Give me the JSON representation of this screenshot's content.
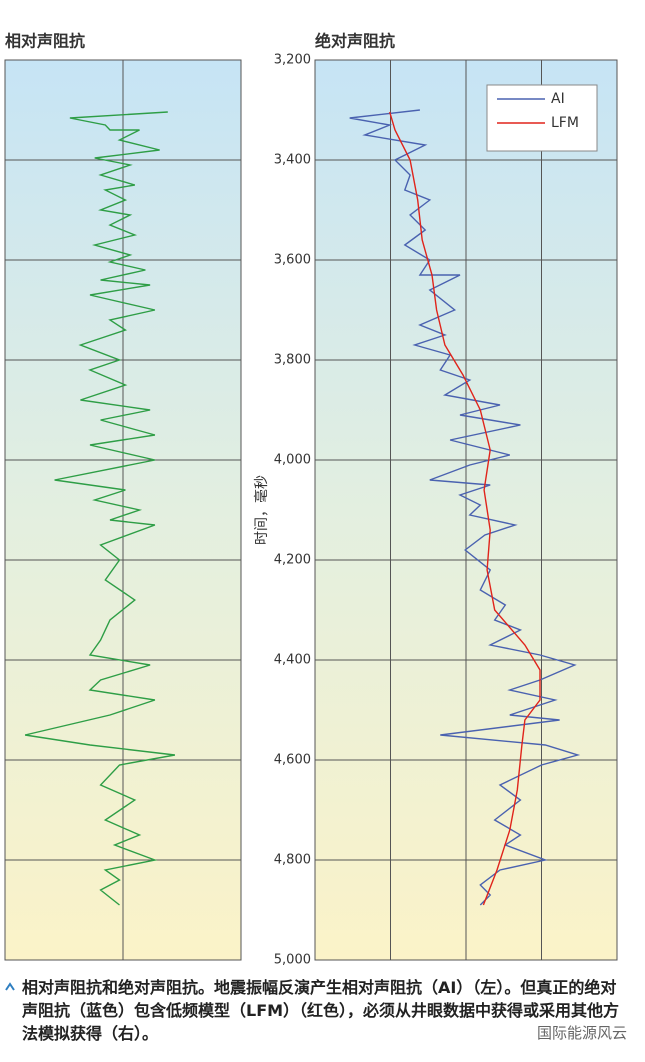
{
  "chart_data": [
    {
      "type": "line",
      "title": "相对声阻抗",
      "xlim": [
        -1,
        1
      ],
      "xgrid": [
        0
      ],
      "ylim": [
        3200,
        5000
      ],
      "yreverse": true,
      "ygrid": [
        3400,
        3600,
        3800,
        4000,
        4200,
        4400,
        4600,
        4800
      ],
      "series": [
        {
          "color": "#2e9e46",
          "values": [
            0.38,
            -0.45,
            -0.15,
            -0.11,
            0.14,
            -0.03,
            0.31,
            -0.24,
            0.06,
            -0.19,
            0.1,
            -0.15,
            0.02,
            -0.19,
            0.06,
            -0.11,
            0.1,
            -0.24,
            0.06,
            -0.11,
            0.19,
            -0.19,
            0.23,
            -0.28,
            0.27,
            -0.11,
            0.02,
            -0.36,
            -0.03,
            -0.28,
            0.02,
            -0.36,
            0.23,
            -0.19,
            0.27,
            -0.28,
            0.27,
            -0.58,
            0.02,
            -0.24,
            0.14,
            -0.11,
            0.27,
            -0.19,
            -0.03,
            -0.15,
            0.1,
            -0.11,
            -0.19,
            -0.28,
            0.23,
            -0.19,
            -0.28,
            0.27,
            -0.11,
            -0.83,
            -0.28,
            0.44,
            -0.03,
            -0.19,
            0.1,
            -0.15,
            0.14,
            -0.07,
            0.27,
            -0.15,
            -0.03,
            -0.19,
            -0.03
          ],
          "y": [
            3304,
            3316,
            3330,
            3340,
            3340,
            3360,
            3380,
            3396,
            3410,
            3430,
            3450,
            3460,
            3480,
            3500,
            3510,
            3530,
            3550,
            3570,
            3590,
            3604,
            3620,
            3640,
            3650,
            3670,
            3700,
            3720,
            3740,
            3770,
            3800,
            3820,
            3850,
            3880,
            3900,
            3920,
            3950,
            3970,
            4000,
            4040,
            4060,
            4080,
            4100,
            4120,
            4130,
            4170,
            4200,
            4240,
            4280,
            4320,
            4360,
            4390,
            4410,
            4440,
            4460,
            4480,
            4510,
            4550,
            4570,
            4590,
            4610,
            4650,
            4680,
            4720,
            4750,
            4770,
            4800,
            4820,
            4840,
            4860,
            4890
          ]
        }
      ]
    },
    {
      "type": "line",
      "title": "绝对声阻抗",
      "ylabel": "时间，毫秒",
      "xlim": [
        0,
        4
      ],
      "xgrid": [
        1,
        2,
        3
      ],
      "ylim": [
        3200,
        5000
      ],
      "yreverse": true,
      "yticks": [
        {
          "value": 3200,
          "label": "3,200"
        },
        {
          "value": 3400,
          "label": "3,400"
        },
        {
          "value": 3600,
          "label": "3,600"
        },
        {
          "value": 3800,
          "label": "3,800"
        },
        {
          "value": 4000,
          "label": "4,000"
        },
        {
          "value": 4200,
          "label": "4,200"
        },
        {
          "value": 4400,
          "label": "4,400"
        },
        {
          "value": 4600,
          "label": "4,600"
        },
        {
          "value": 4800,
          "label": "4,800"
        },
        {
          "value": 5000,
          "label": "5,000"
        }
      ],
      "legend": "upper right",
      "series": [
        {
          "name": "AI",
          "color": "#4a62b0",
          "values": [
            1.39,
            0.46,
            0.99,
            0.66,
            1.46,
            1.06,
            1.26,
            1.19,
            1.52,
            1.26,
            1.46,
            1.19,
            1.52,
            1.39,
            1.92,
            1.52,
            1.85,
            1.39,
            1.72,
            1.32,
            1.79,
            1.66,
            2.05,
            1.72,
            2.45,
            1.92,
            2.72,
            1.79,
            2.58,
            2.05,
            1.52,
            2.32,
            1.92,
            2.19,
            2.05,
            2.65,
            2.25,
            1.99,
            2.32,
            2.19,
            2.52,
            2.38,
            2.72,
            2.32,
            2.98,
            3.44,
            2.98,
            2.58,
            3.18,
            2.58,
            3.24,
            1.66,
            3.05,
            3.48,
            3.0,
            2.45,
            2.72,
            2.38,
            2.72,
            2.52,
            3.05,
            2.45,
            2.19,
            2.32,
            2.19
          ],
          "y": [
            3300,
            3316,
            3330,
            3350,
            3370,
            3400,
            3430,
            3460,
            3480,
            3510,
            3540,
            3570,
            3600,
            3630,
            3630,
            3660,
            3700,
            3730,
            3750,
            3770,
            3790,
            3820,
            3840,
            3870,
            3890,
            3910,
            3930,
            3960,
            3990,
            4010,
            4040,
            4050,
            4070,
            4090,
            4110,
            4130,
            4150,
            4180,
            4220,
            4260,
            4290,
            4320,
            4340,
            4370,
            4390,
            4410,
            4440,
            4460,
            4480,
            4510,
            4520,
            4550,
            4570,
            4590,
            4610,
            4650,
            4680,
            4720,
            4750,
            4770,
            4800,
            4820,
            4850,
            4870,
            4890
          ]
        },
        {
          "name": "LFM",
          "color": "#e0241b",
          "values": [
            0.99,
            1.06,
            1.26,
            1.36,
            1.42,
            1.55,
            1.61,
            1.72,
            1.96,
            2.19,
            2.32,
            2.24,
            2.32,
            2.28,
            2.38,
            2.78,
            2.98,
            2.98,
            2.78,
            2.74,
            2.68,
            2.58,
            2.41,
            2.23
          ],
          "y": [
            3304,
            3340,
            3400,
            3480,
            3560,
            3630,
            3700,
            3770,
            3830,
            3900,
            3980,
            4060,
            4140,
            4220,
            4300,
            4370,
            4420,
            4480,
            4520,
            4570,
            4660,
            4740,
            4820,
            4890
          ]
        }
      ]
    }
  ],
  "caption": "相对声阻抗和绝对声阻抗。地震振幅反演产生相对声阻抗（AI）（左）。但真正的绝对声阻抗（蓝色）包含低频模型（LFM）（红色），必须从井眼数据中获得或采用其他方法模拟获得（右）。",
  "watermark": "国际能源风云"
}
